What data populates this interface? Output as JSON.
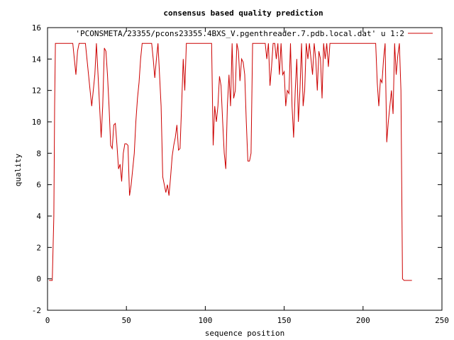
{
  "chart_data": {
    "type": "line",
    "title": "consensus based quality prediction",
    "xlabel": "sequence position",
    "ylabel": "quality",
    "xlim": [
      0,
      250
    ],
    "ylim": [
      -2,
      16
    ],
    "xticks": [
      0,
      50,
      100,
      150,
      200,
      250
    ],
    "yticks": [
      -2,
      0,
      2,
      4,
      6,
      8,
      10,
      12,
      14,
      16
    ],
    "grid": false,
    "legend_position": "top-right",
    "series": [
      {
        "name": "'PCONSMETA/23355/pcons23355.4BXS_V.pgenthreader.7.pdb.local.dat' u 1:2",
        "color": "#cc0000",
        "points": [
          [
            1,
            -0.1
          ],
          [
            2,
            -0.1
          ],
          [
            3,
            -0.1
          ],
          [
            4,
            4
          ],
          [
            4.5,
            11
          ],
          [
            5,
            15
          ],
          [
            6,
            15
          ],
          [
            8,
            15
          ],
          [
            10,
            15
          ],
          [
            12,
            15
          ],
          [
            14,
            15
          ],
          [
            16,
            15
          ],
          [
            17,
            14
          ],
          [
            18,
            13
          ],
          [
            19,
            14.5
          ],
          [
            20,
            15
          ],
          [
            22,
            15
          ],
          [
            24,
            15
          ],
          [
            25,
            14
          ],
          [
            26,
            13
          ],
          [
            27,
            12
          ],
          [
            28,
            11
          ],
          [
            29,
            12
          ],
          [
            30,
            13
          ],
          [
            31,
            15
          ],
          [
            32,
            13
          ],
          [
            33,
            11
          ],
          [
            34,
            9
          ],
          [
            35,
            11
          ],
          [
            36,
            14.7
          ],
          [
            37,
            14.5
          ],
          [
            38,
            13
          ],
          [
            39,
            11
          ],
          [
            40,
            8.5
          ],
          [
            41,
            8.3
          ],
          [
            42,
            9.8
          ],
          [
            43,
            9.9
          ],
          [
            44,
            8.5
          ],
          [
            45,
            7
          ],
          [
            46,
            7.3
          ],
          [
            47,
            6.2
          ],
          [
            48,
            8
          ],
          [
            49,
            8.6
          ],
          [
            50,
            8.6
          ],
          [
            51,
            8.5
          ],
          [
            52,
            5.3
          ],
          [
            53,
            6
          ],
          [
            54,
            7
          ],
          [
            55,
            8
          ],
          [
            56,
            10
          ],
          [
            57,
            11.5
          ],
          [
            58,
            12.5
          ],
          [
            59,
            14
          ],
          [
            60,
            15
          ],
          [
            62,
            15
          ],
          [
            64,
            15
          ],
          [
            66,
            15
          ],
          [
            67,
            14
          ],
          [
            68,
            12.8
          ],
          [
            69,
            14
          ],
          [
            70,
            15
          ],
          [
            71,
            13
          ],
          [
            72,
            11
          ],
          [
            73,
            6.5
          ],
          [
            74,
            6
          ],
          [
            75,
            5.5
          ],
          [
            76,
            6
          ],
          [
            77,
            5.3
          ],
          [
            78,
            6.5
          ],
          [
            79,
            7.8
          ],
          [
            80,
            8.5
          ],
          [
            81,
            9
          ],
          [
            82,
            9.8
          ],
          [
            83,
            8.2
          ],
          [
            84,
            8.3
          ],
          [
            85,
            11
          ],
          [
            86,
            14
          ],
          [
            87,
            12
          ],
          [
            88,
            15
          ],
          [
            90,
            15
          ],
          [
            92,
            15
          ],
          [
            94,
            15
          ],
          [
            96,
            15
          ],
          [
            98,
            15
          ],
          [
            100,
            15
          ],
          [
            102,
            15
          ],
          [
            104,
            15
          ],
          [
            105,
            8.5
          ],
          [
            106,
            11
          ],
          [
            107,
            10
          ],
          [
            108,
            11
          ],
          [
            109,
            12.9
          ],
          [
            110,
            12.3
          ],
          [
            111,
            10
          ],
          [
            112,
            8
          ],
          [
            113,
            7
          ],
          [
            114,
            11
          ],
          [
            115,
            13
          ],
          [
            116,
            11
          ],
          [
            117,
            15
          ],
          [
            118,
            11.5
          ],
          [
            119,
            12
          ],
          [
            120,
            15
          ],
          [
            121,
            14.5
          ],
          [
            122,
            12.6
          ],
          [
            123,
            14
          ],
          [
            124,
            13.8
          ],
          [
            125,
            13
          ],
          [
            126,
            10
          ],
          [
            127,
            7.5
          ],
          [
            128,
            7.5
          ],
          [
            129,
            8
          ],
          [
            130,
            15
          ],
          [
            132,
            15
          ],
          [
            134,
            15
          ],
          [
            136,
            15
          ],
          [
            138,
            15
          ],
          [
            139,
            14
          ],
          [
            140,
            15
          ],
          [
            141,
            12.3
          ],
          [
            142,
            13.5
          ],
          [
            143,
            15
          ],
          [
            144,
            15
          ],
          [
            145,
            14
          ],
          [
            146,
            15
          ],
          [
            147,
            13
          ],
          [
            148,
            15
          ],
          [
            149,
            13
          ],
          [
            150,
            13.2
          ],
          [
            151,
            11
          ],
          [
            152,
            12
          ],
          [
            153,
            11.8
          ],
          [
            154,
            15
          ],
          [
            155,
            11
          ],
          [
            156,
            9
          ],
          [
            157,
            12
          ],
          [
            158,
            14
          ],
          [
            159,
            10
          ],
          [
            160,
            12
          ],
          [
            161,
            15
          ],
          [
            162,
            11
          ],
          [
            163,
            12
          ],
          [
            164,
            15
          ],
          [
            165,
            14
          ],
          [
            166,
            15
          ],
          [
            167,
            14
          ],
          [
            168,
            13
          ],
          [
            169,
            15
          ],
          [
            170,
            14
          ],
          [
            171,
            12
          ],
          [
            172,
            14.5
          ],
          [
            173,
            14
          ],
          [
            174,
            11.5
          ],
          [
            175,
            15
          ],
          [
            176,
            14
          ],
          [
            177,
            15
          ],
          [
            178,
            13.5
          ],
          [
            179,
            15
          ],
          [
            180,
            15
          ],
          [
            185,
            15
          ],
          [
            190,
            15
          ],
          [
            195,
            15
          ],
          [
            200,
            15
          ],
          [
            205,
            15
          ],
          [
            208,
            15
          ],
          [
            209,
            12.5
          ],
          [
            210,
            11
          ],
          [
            211,
            12.7
          ],
          [
            212,
            12.5
          ],
          [
            213,
            14
          ],
          [
            214,
            15
          ],
          [
            215,
            8.7
          ],
          [
            216,
            10
          ],
          [
            217,
            11
          ],
          [
            218,
            12
          ],
          [
            219,
            10.5
          ],
          [
            220,
            15
          ],
          [
            221,
            13
          ],
          [
            222,
            14.2
          ],
          [
            223,
            15
          ],
          [
            224,
            12
          ],
          [
            225,
            0
          ],
          [
            226,
            -0.1
          ],
          [
            228,
            -0.1
          ],
          [
            231,
            -0.1
          ]
        ]
      }
    ]
  }
}
